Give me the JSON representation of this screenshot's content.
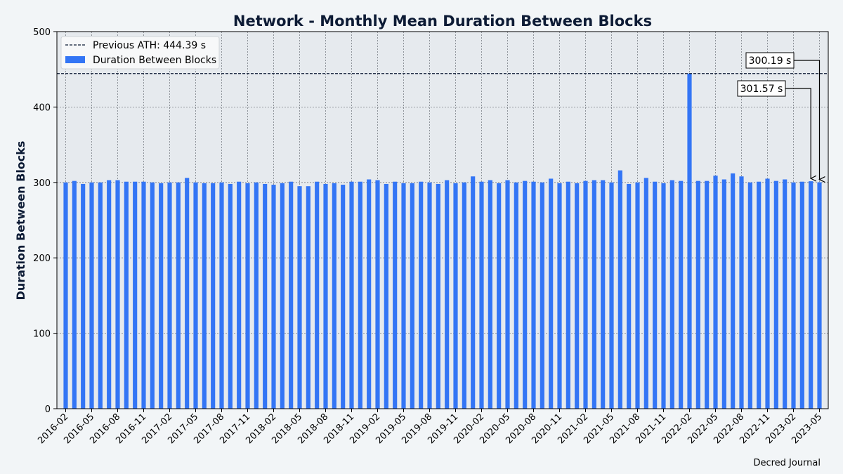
{
  "chart_data": {
    "type": "bar",
    "title": "Network - Monthly Mean Duration Between Blocks",
    "ylabel": "Duration Between Blocks",
    "xlabel": "",
    "ylim": [
      0,
      500
    ],
    "yticks": [
      0,
      100,
      200,
      300,
      400,
      500
    ],
    "grid": true,
    "legend_position": "top-left",
    "categories": [
      "2016-02",
      "2016-03",
      "2016-04",
      "2016-05",
      "2016-06",
      "2016-07",
      "2016-08",
      "2016-09",
      "2016-10",
      "2016-11",
      "2016-12",
      "2017-01",
      "2017-02",
      "2017-03",
      "2017-04",
      "2017-05",
      "2017-06",
      "2017-07",
      "2017-08",
      "2017-09",
      "2017-10",
      "2017-11",
      "2017-12",
      "2018-01",
      "2018-02",
      "2018-03",
      "2018-04",
      "2018-05",
      "2018-06",
      "2018-07",
      "2018-08",
      "2018-09",
      "2018-10",
      "2018-11",
      "2018-12",
      "2019-01",
      "2019-02",
      "2019-03",
      "2019-04",
      "2019-05",
      "2019-06",
      "2019-07",
      "2019-08",
      "2019-09",
      "2019-10",
      "2019-11",
      "2019-12",
      "2020-01",
      "2020-02",
      "2020-03",
      "2020-04",
      "2020-05",
      "2020-06",
      "2020-07",
      "2020-08",
      "2020-09",
      "2020-10",
      "2020-11",
      "2020-12",
      "2021-01",
      "2021-02",
      "2021-03",
      "2021-04",
      "2021-05",
      "2021-06",
      "2021-07",
      "2021-08",
      "2021-09",
      "2021-10",
      "2021-11",
      "2021-12",
      "2022-01",
      "2022-02",
      "2022-03",
      "2022-04",
      "2022-05",
      "2022-06",
      "2022-07",
      "2022-08",
      "2022-09",
      "2022-10",
      "2022-11",
      "2022-12",
      "2023-01",
      "2023-02",
      "2023-03",
      "2023-04",
      "2023-05"
    ],
    "xtick_labels": [
      "2016-02",
      "2016-05",
      "2016-08",
      "2016-11",
      "2017-02",
      "2017-05",
      "2017-08",
      "2017-11",
      "2018-02",
      "2018-05",
      "2018-08",
      "2018-11",
      "2019-02",
      "2019-05",
      "2019-08",
      "2019-11",
      "2020-02",
      "2020-05",
      "2020-08",
      "2020-11",
      "2021-02",
      "2021-05",
      "2021-08",
      "2021-11",
      "2022-02",
      "2022-05",
      "2022-08",
      "2022-11",
      "2023-02",
      "2023-05"
    ],
    "series": [
      {
        "name": "Duration Between Blocks",
        "color": "#3375f5",
        "values": [
          300,
          302,
          298,
          300,
          300,
          303,
          303,
          301,
          301,
          301,
          300,
          299,
          300,
          300,
          306,
          300,
          299,
          299,
          300,
          298,
          301,
          299,
          300,
          298,
          297,
          299,
          301,
          295,
          295,
          301,
          298,
          299,
          297,
          301,
          301,
          304,
          303,
          298,
          301,
          299,
          299,
          301,
          300,
          298,
          303,
          299,
          300,
          308,
          301,
          303,
          299,
          303,
          300,
          302,
          301,
          300,
          305,
          299,
          301,
          299,
          302,
          303,
          303,
          300,
          316,
          298,
          300,
          306,
          301,
          299,
          303,
          302,
          444.39,
          302,
          302,
          309,
          304,
          312,
          308,
          300,
          301,
          305,
          302,
          304,
          300,
          301,
          301.57,
          300.19
        ]
      }
    ],
    "reference_line": {
      "name": "Previous ATH: 444.39 s",
      "value": 444.39,
      "color": "#0d1b35"
    },
    "annotations": [
      {
        "text": "300.19 s",
        "category": "2023-05",
        "value": 300.19
      },
      {
        "text": "301.57 s",
        "category": "2023-04",
        "value": 301.57
      }
    ],
    "footer": "Decred Journal"
  }
}
